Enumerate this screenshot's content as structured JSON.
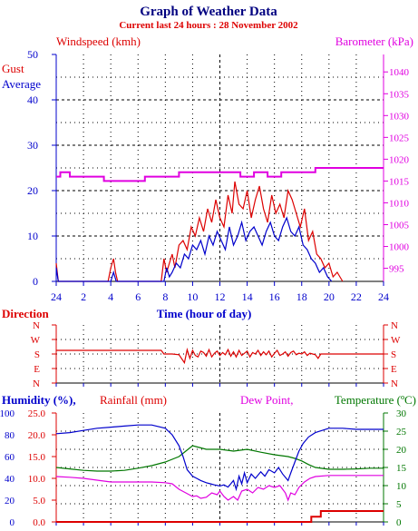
{
  "title": "Graph of Weather Data",
  "subtitle": "Current last 24 hours : 28 November 2002",
  "colors": {
    "blue": "#0000cc",
    "red": "#dd0000",
    "magenta": "#e000e0",
    "green": "#007700",
    "grid": "#000000"
  },
  "chart_data": [
    {
      "type": "line",
      "name": "wind-barometer",
      "left_axis_title": "Windspeed (kmh)",
      "right_axis_title": "Barometer (kPa)",
      "xlabel": "Time (hour of day)",
      "x_ticks": [
        "24",
        "2",
        "4",
        "6",
        "8",
        "10",
        "12",
        "14",
        "16",
        "18",
        "20",
        "22",
        "24"
      ],
      "ylim": [
        0,
        50
      ],
      "y_ticks": [
        0,
        10,
        20,
        30,
        40,
        50
      ],
      "y2lim": [
        992,
        1044
      ],
      "y2_ticks": [
        995,
        1000,
        1005,
        1010,
        1015,
        1020,
        1025,
        1030,
        1035,
        1040
      ],
      "series": [
        {
          "name": "Gust",
          "color": "#dd0000",
          "x": [
            0,
            0.15,
            3.8,
            4.0,
            4.2,
            4.35,
            4.5,
            7.7,
            7.9,
            8.1,
            8.3,
            8.5,
            8.7,
            9.0,
            9.3,
            9.6,
            9.9,
            10.2,
            10.5,
            10.8,
            11.1,
            11.4,
            11.7,
            12.0,
            12.3,
            12.6,
            12.9,
            13.1,
            13.4,
            13.7,
            14.0,
            14.3,
            14.6,
            14.9,
            15.2,
            15.5,
            15.8,
            16.1,
            16.4,
            16.7,
            17.0,
            17.3,
            17.6,
            17.9,
            18.2,
            18.5,
            18.8,
            19.1,
            19.4,
            19.7,
            20.0,
            20.3,
            20.6,
            20.8,
            21.0
          ],
          "y": [
            4,
            0,
            0,
            3,
            5,
            2,
            0,
            0,
            5,
            2,
            4,
            6,
            3,
            8,
            9,
            7,
            12,
            10,
            14,
            11,
            16,
            13,
            18,
            14,
            12,
            19,
            15,
            22,
            17,
            16,
            20,
            14,
            18,
            21,
            16,
            13,
            19,
            15,
            17,
            14,
            20,
            18,
            15,
            12,
            16,
            9,
            11,
            6,
            5,
            3,
            4,
            1,
            2,
            1,
            0
          ]
        },
        {
          "name": "Average",
          "color": "#0000cc",
          "x": [
            0,
            0.15,
            4.0,
            4.2,
            4.4,
            7.9,
            8.1,
            8.3,
            8.5,
            8.8,
            9.1,
            9.4,
            9.7,
            10.0,
            10.3,
            10.6,
            10.9,
            11.2,
            11.5,
            11.8,
            12.1,
            12.4,
            12.7,
            13.0,
            13.3,
            13.6,
            13.9,
            14.2,
            14.5,
            14.8,
            15.1,
            15.4,
            15.7,
            16.0,
            16.3,
            16.6,
            16.9,
            17.2,
            17.5,
            17.8,
            18.1,
            18.4,
            18.7,
            19.0,
            19.3,
            19.6,
            19.9,
            20.2
          ],
          "y": [
            3,
            0,
            0,
            2,
            0,
            0,
            3,
            1,
            2,
            4,
            3,
            6,
            5,
            8,
            7,
            9,
            6,
            10,
            8,
            11,
            9,
            7,
            12,
            8,
            10,
            13,
            9,
            11,
            12,
            10,
            8,
            11,
            13,
            10,
            9,
            12,
            14,
            11,
            10,
            12,
            8,
            7,
            5,
            4,
            2,
            3,
            1,
            0
          ]
        },
        {
          "name": "Barometer",
          "color": "#e000e0",
          "axis": "right",
          "x": [
            0,
            0.3,
            0.5,
            1.0,
            2.5,
            3.5,
            4.0,
            5.0,
            6.0,
            6.5,
            7.5,
            8.0,
            9.0,
            10.0,
            11.0,
            12.0,
            12.5,
            13.0,
            13.5,
            14.0,
            14.5,
            15.0,
            15.5,
            16.0,
            16.5,
            17.0,
            17.5,
            18.0,
            19.0,
            20.0,
            21.0,
            22.0,
            23.0,
            24.0
          ],
          "y": [
            1016,
            1017,
            1017,
            1016,
            1016,
            1015,
            1015,
            1015,
            1015,
            1016,
            1016,
            1016,
            1017,
            1017,
            1017,
            1017,
            1017,
            1017,
            1016,
            1016,
            1017,
            1017,
            1016,
            1016,
            1017,
            1017,
            1017,
            1017,
            1018,
            1018,
            1018,
            1018,
            1018,
            1018
          ]
        }
      ]
    },
    {
      "type": "line",
      "name": "wind-direction",
      "ylabel": "Direction",
      "y_ticks": [
        "N",
        "W",
        "S",
        "E",
        "N"
      ],
      "series": [
        {
          "name": "Direction",
          "color": "#dd0000",
          "x": [
            0,
            7.7,
            7.9,
            8.5,
            9.0,
            9.4,
            9.6,
            9.8,
            10.0,
            10.2,
            10.4,
            10.6,
            10.8,
            11.0,
            11.2,
            11.4,
            11.6,
            11.8,
            12.0,
            12.2,
            12.4,
            12.6,
            12.8,
            13.0,
            13.2,
            13.4,
            13.6,
            13.8,
            14.0,
            14.2,
            14.4,
            14.6,
            14.8,
            15.0,
            15.2,
            15.4,
            15.6,
            15.8,
            16.0,
            16.2,
            16.4,
            16.6,
            16.8,
            17.0,
            17.2,
            17.4,
            17.6,
            17.8,
            18.0,
            18.2,
            18.4,
            18.6,
            18.8,
            19.0,
            19.2,
            19.4,
            19.6,
            20.0,
            24.0
          ],
          "y": [
            1.75,
            1.75,
            2.0,
            2.0,
            2.05,
            2.6,
            1.7,
            2.3,
            1.75,
            2.1,
            2.2,
            1.8,
            1.9,
            2.15,
            1.7,
            2.2,
            1.95,
            1.8,
            2.1,
            1.9,
            2.05,
            1.7,
            2.15,
            1.85,
            2.2,
            1.75,
            2.1,
            1.95,
            1.8,
            2.2,
            1.9,
            2.0,
            1.75,
            2.1,
            1.85,
            2.05,
            1.8,
            2.2,
            1.95,
            1.75,
            2.1,
            2.0,
            1.85,
            2.15,
            1.9,
            1.8,
            2.05,
            1.95,
            2.0,
            1.85,
            2.1,
            1.95,
            2.0,
            2.05,
            2.3,
            2.0,
            2.0,
            2.0,
            2.0
          ]
        }
      ]
    },
    {
      "type": "line",
      "name": "humidity-rain-temp",
      "left_axis_title_1": "Humidity (%),",
      "left_axis_title_2": "Rainfall (mm)",
      "right_axis_title_1": "Dew Point,",
      "right_axis_title_2": "Temperature (ºC)",
      "hum_ticks": [
        0,
        20,
        40,
        60,
        80,
        100
      ],
      "rain_ticks": [
        "0.0",
        "5.0",
        "10.0",
        "15.0",
        "20.0",
        "25.0"
      ],
      "temp_ticks": [
        0,
        5,
        10,
        15,
        20,
        25,
        30
      ],
      "x_ticks": [
        "",
        "",
        "",
        "",
        "",
        "",
        "",
        "",
        "",
        "",
        "",
        "",
        ""
      ],
      "series": [
        {
          "name": "Humidity",
          "color": "#0000cc",
          "unit": "%",
          "x": [
            0,
            1,
            2,
            3,
            4,
            5,
            6,
            7,
            8,
            8.5,
            9,
            9.3,
            9.6,
            10,
            10.3,
            10.6,
            11,
            11.3,
            11.6,
            12,
            12.3,
            12.6,
            13,
            13.2,
            13.4,
            13.6,
            13.8,
            14,
            14.3,
            14.6,
            15,
            15.3,
            15.6,
            16,
            16.3,
            16.6,
            17,
            17.2,
            17.5,
            17.8,
            18.1,
            18.5,
            19,
            19.5,
            20,
            21,
            22,
            23,
            24
          ],
          "y": [
            81,
            82,
            84,
            86,
            87,
            88,
            89,
            89,
            86,
            80,
            70,
            60,
            48,
            42,
            40,
            38,
            36,
            35,
            34,
            33,
            34,
            32,
            38,
            30,
            42,
            35,
            45,
            36,
            44,
            40,
            46,
            42,
            48,
            45,
            50,
            44,
            38,
            45,
            55,
            65,
            72,
            78,
            82,
            84,
            86,
            86,
            85,
            85,
            85
          ]
        },
        {
          "name": "Rainfall",
          "color": "#dd0000",
          "unit": "mm",
          "x": [
            0,
            18.5,
            18.7,
            19.2,
            19.4,
            20.0,
            24.0
          ],
          "y": [
            0,
            0,
            1.2,
            1.2,
            2.5,
            2.5,
            2.5
          ]
        },
        {
          "name": "Dew Point",
          "color": "#e000e0",
          "unit": "ºC",
          "x": [
            0,
            1,
            2,
            3,
            4,
            5,
            6,
            7,
            8,
            8.5,
            9,
            9.5,
            10,
            10.3,
            10.6,
            11,
            11.4,
            11.8,
            12,
            12.3,
            12.6,
            13,
            13.3,
            13.6,
            14,
            14.4,
            14.8,
            15.2,
            15.6,
            16,
            16.4,
            16.8,
            17.0,
            17.2,
            17.5,
            17.8,
            18.2,
            18.6,
            19,
            20,
            21,
            22,
            23,
            24
          ],
          "y": [
            12.5,
            12.3,
            12,
            11.5,
            11,
            11,
            11,
            11,
            10.8,
            10.5,
            9,
            8,
            7,
            7.2,
            6.5,
            6.8,
            8.0,
            7.5,
            8.5,
            7.0,
            6.0,
            7.0,
            6.0,
            8.5,
            9.0,
            8.0,
            9.5,
            9.0,
            10.0,
            9.5,
            10.0,
            8.0,
            6.0,
            8.0,
            7.5,
            9.5,
            11.0,
            12.0,
            12.5,
            12.8,
            12.8,
            12.8,
            12.8,
            12.8
          ]
        },
        {
          "name": "Temperature",
          "color": "#007700",
          "unit": "ºC",
          "x": [
            0,
            1,
            2,
            3,
            4,
            5,
            6,
            7,
            8,
            9,
            9.5,
            10,
            10.5,
            11,
            12,
            13,
            14,
            15,
            16,
            17,
            17.5,
            18,
            18.5,
            19,
            20,
            21,
            22,
            23,
            24
          ],
          "y": [
            15,
            14.6,
            14.2,
            14,
            14,
            14.2,
            14.8,
            15.5,
            16.5,
            18,
            19.5,
            21,
            20.5,
            20,
            20,
            19.5,
            20,
            19.2,
            18.5,
            18,
            17.5,
            16.8,
            15.8,
            15,
            14.5,
            14.5,
            14.6,
            14.8,
            14.8
          ]
        }
      ]
    }
  ]
}
